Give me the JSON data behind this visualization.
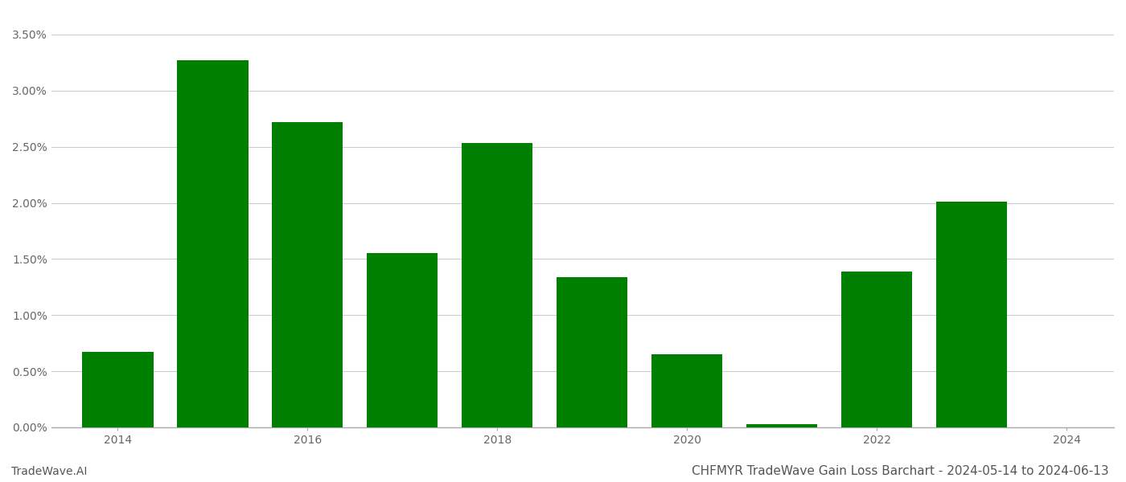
{
  "years": [
    2014,
    2015,
    2016,
    2017,
    2018,
    2019,
    2020,
    2021,
    2022,
    2023
  ],
  "values": [
    0.0067,
    0.0327,
    0.0272,
    0.0155,
    0.0253,
    0.01335,
    0.0065,
    0.00025,
    0.01385,
    0.0201
  ],
  "bar_color": "#008000",
  "background_color": "#ffffff",
  "grid_color": "#cccccc",
  "title": "CHFMYR TradeWave Gain Loss Barchart - 2024-05-14 to 2024-06-13",
  "watermark": "TradeWave.AI",
  "ylim_min": 0.0,
  "ylim_max": 0.037,
  "title_fontsize": 11,
  "tick_fontsize": 10,
  "watermark_fontsize": 10,
  "bar_width": 0.75,
  "xtick_labels": [
    "2014",
    "2016",
    "2018",
    "2020",
    "2022",
    "2024"
  ],
  "xtick_positions": [
    2014,
    2016,
    2018,
    2020,
    2022,
    2024
  ],
  "yticks": [
    0.0,
    0.005,
    0.01,
    0.015,
    0.02,
    0.025,
    0.03,
    0.035
  ],
  "xlim_left": 2013.3,
  "xlim_right": 2024.5
}
